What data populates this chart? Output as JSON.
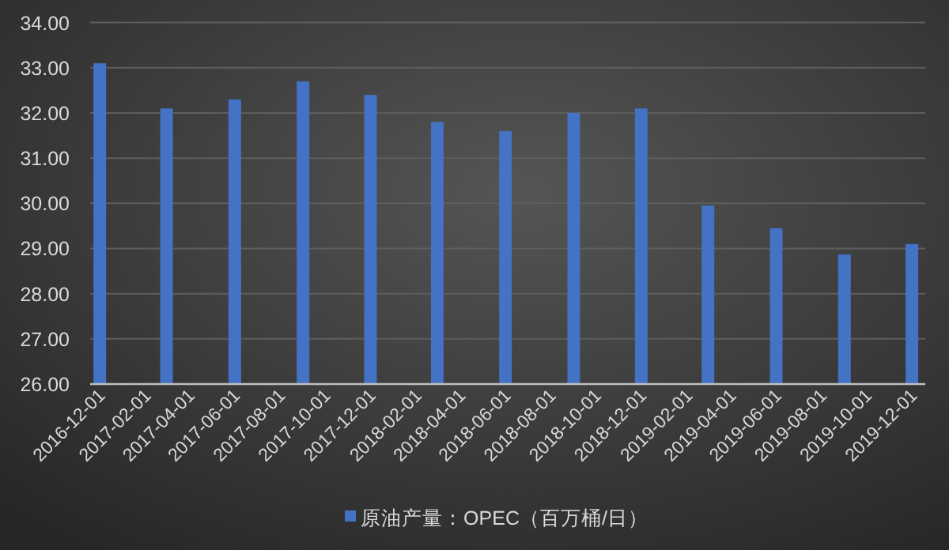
{
  "chart_data": {
    "type": "bar",
    "x": [
      "2016-12-01",
      "2017-03-01",
      "2017-06-01",
      "2017-09-01",
      "2017-12-01",
      "2018-03-01",
      "2018-06-01",
      "2018-09-01",
      "2018-12-01",
      "2019-03-01",
      "2019-06-01",
      "2019-09-01",
      "2019-12-01"
    ],
    "series": [
      {
        "name": "原油产量：OPEC（百万桶/日）",
        "color": "#4472c4",
        "values": [
          33.1,
          32.1,
          32.3,
          32.7,
          32.4,
          31.8,
          31.6,
          32.0,
          32.1,
          29.95,
          29.45,
          28.87,
          29.1
        ]
      }
    ],
    "xlim": [
      "2016-11-18",
      "2019-12-19"
    ],
    "xticks": [
      "2016-12-01",
      "2017-02-01",
      "2017-04-01",
      "2017-06-01",
      "2017-08-01",
      "2017-10-01",
      "2017-12-01",
      "2018-02-01",
      "2018-04-01",
      "2018-06-01",
      "2018-08-01",
      "2018-10-01",
      "2018-12-01",
      "2019-02-01",
      "2019-04-01",
      "2019-06-01",
      "2019-08-01",
      "2019-10-01",
      "2019-12-01"
    ],
    "ylim": [
      26,
      34
    ],
    "yticks": [
      {
        "value": 26,
        "label": "26.00"
      },
      {
        "value": 27,
        "label": "27.00"
      },
      {
        "value": 28,
        "label": "28.00"
      },
      {
        "value": 29,
        "label": "29.00"
      },
      {
        "value": 30,
        "label": "30.00"
      },
      {
        "value": 31,
        "label": "31.00"
      },
      {
        "value": 32,
        "label": "32.00"
      },
      {
        "value": 33,
        "label": "33.00"
      },
      {
        "value": 34,
        "label": "34.00"
      }
    ],
    "grid": "y",
    "legend": "bottom"
  }
}
